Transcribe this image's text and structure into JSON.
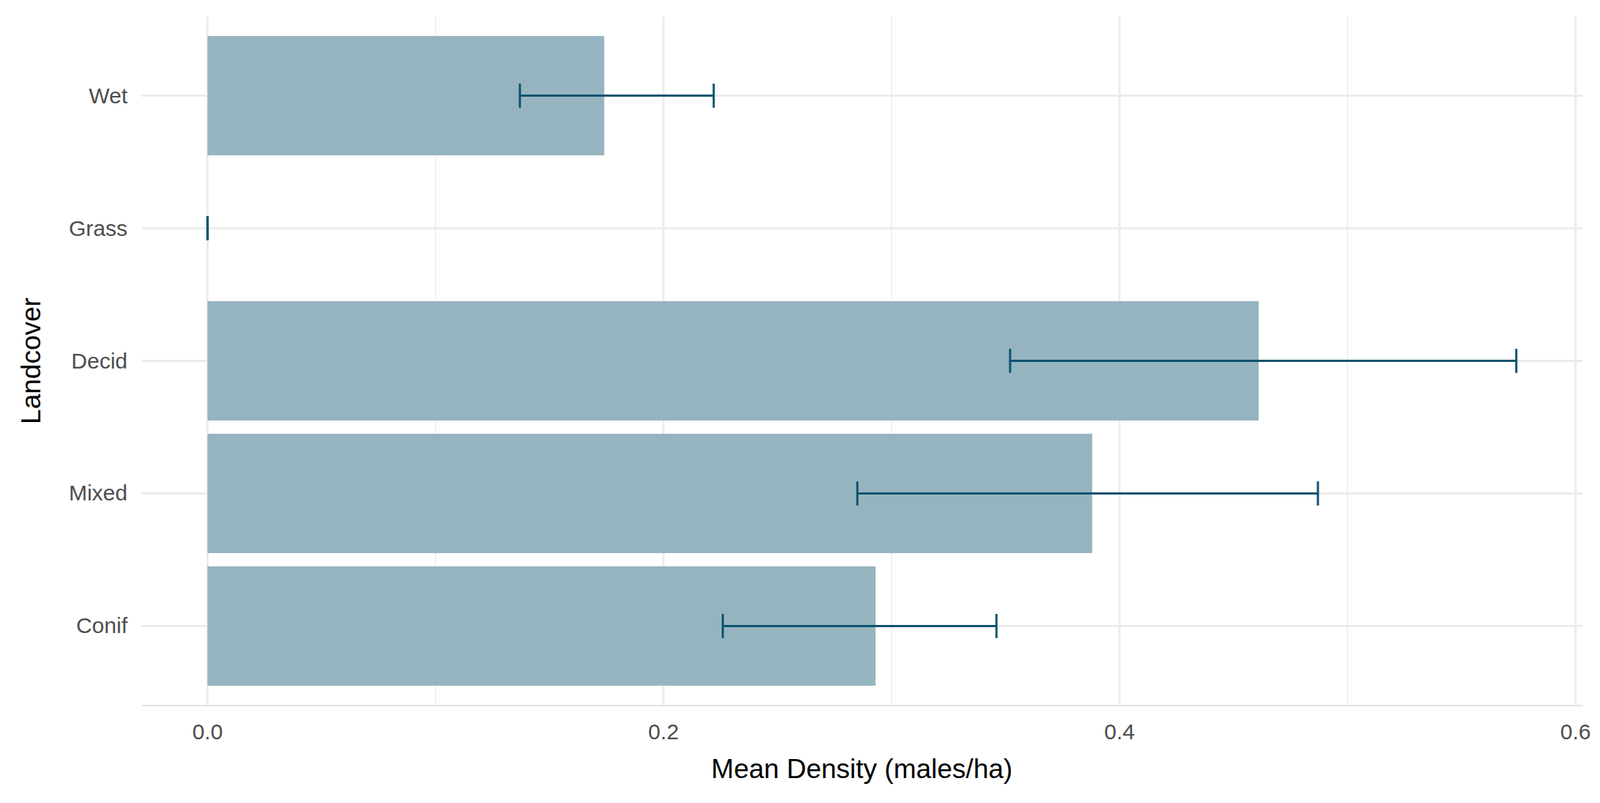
{
  "chart_data": {
    "type": "bar",
    "orientation": "horizontal",
    "categories": [
      "Conif",
      "Mixed",
      "Decid",
      "Grass",
      "Wet"
    ],
    "values": [
      0.293,
      0.388,
      0.461,
      0,
      0.174
    ],
    "error_low": [
      0.226,
      0.285,
      0.352,
      0,
      0.137
    ],
    "error_high": [
      0.346,
      0.487,
      0.574,
      0,
      0.222
    ],
    "color": "#96b4bf",
    "xlabel": "Mean Density (males/ha)",
    "ylabel": "Landcover",
    "xlim": [
      -0.029,
      0.603
    ],
    "xticks": [
      {
        "value": 0,
        "label": "0.0"
      },
      0.2,
      0.4,
      0.6
    ],
    "grid": true
  }
}
